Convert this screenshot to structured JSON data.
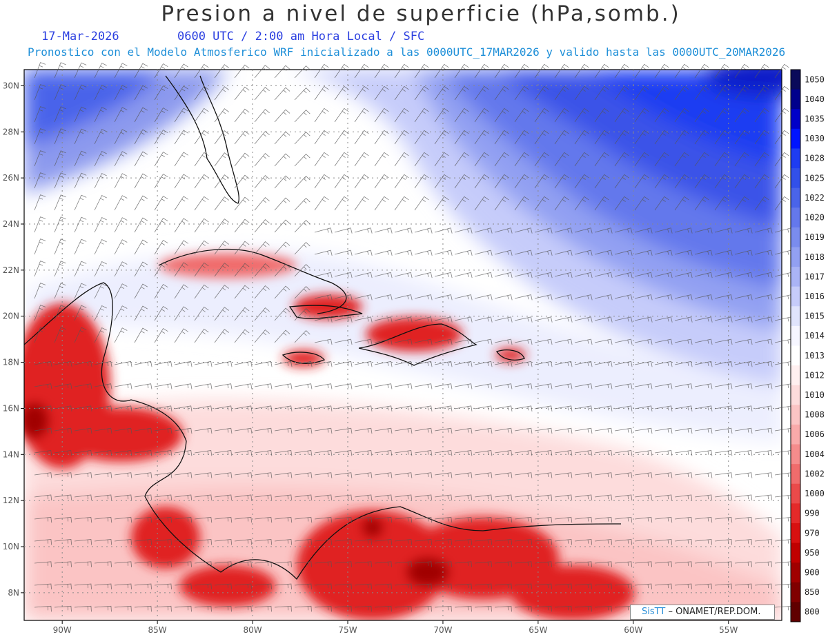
{
  "title": "Presion a nivel de superficie (hPa,somb.)",
  "subtitle": {
    "date": "17-Mar-2026",
    "time": "0600 UTC / 2:00 am Hora Local / SFC",
    "model_info": "Pronostico con el Modelo Atmosferico WRF inicializado a las 0000UTC_17MAR2026 y valido hasta las  0000UTC_20MAR2026"
  },
  "credit": {
    "brand": "SisTT",
    "text": "– ONAMET/REP.DOM."
  },
  "chart_data": {
    "type": "heatmap",
    "title": "Presion a nivel de superficie (hPa,somb.)",
    "x_ticks": [
      "90W",
      "85W",
      "80W",
      "75W",
      "70W",
      "65W",
      "60W",
      "55W"
    ],
    "y_ticks": [
      "30N",
      "28N",
      "26N",
      "24N",
      "22N",
      "20N",
      "18N",
      "16N",
      "14N",
      "12N",
      "10N",
      "8N"
    ],
    "xlim": [
      -92,
      -52.2
    ],
    "ylim": [
      6.8,
      30.7
    ],
    "grid": true,
    "colorbar": {
      "levels": [
        "1050",
        "1040",
        "1035",
        "1030",
        "1028",
        "1025",
        "1022",
        "1020",
        "1019",
        "1018",
        "1017",
        "1016",
        "1015",
        "1014",
        "1013",
        "1012",
        "1010",
        "1008",
        "1006",
        "1004",
        "1002",
        "1000",
        "990",
        "970",
        "950",
        "900",
        "850",
        "800"
      ],
      "colors": [
        "#0a0a5a",
        "#00008c",
        "#0000c8",
        "#0014ff",
        "#1e3cf2",
        "#3250ea",
        "#4a64ea",
        "#6478ec",
        "#7a8cee",
        "#92a0f2",
        "#aab4f6",
        "#c6ccfa",
        "#e0e4fc",
        "#f6f6ff",
        "#ffffff",
        "#fff0f0",
        "#fddcdc",
        "#fbc4c4",
        "#f9aaaa",
        "#f58c8c",
        "#f06c6c",
        "#ea4a4a",
        "#e42a2a",
        "#d81010",
        "#c00000",
        "#a00000",
        "#800000",
        "#600000"
      ]
    }
  },
  "colors": {
    "title": "#333333",
    "date_text": "#2b3fe0",
    "model_text": "#1e8fd8",
    "high_pressure": "#1428f0",
    "low_pressure": "#d80c0c"
  }
}
